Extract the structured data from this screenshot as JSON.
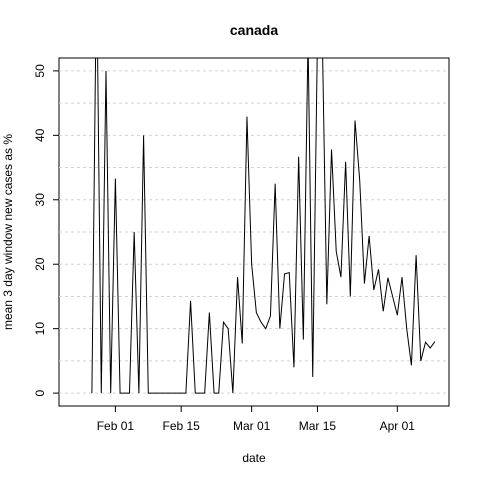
{
  "chart_data": {
    "type": "line",
    "title": "canada",
    "xlabel": "date",
    "ylabel": "mean  3  day window new cases as %",
    "x": [
      "Jan 27",
      "Jan 28",
      "Jan 29",
      "Jan 30",
      "Jan 31",
      "Feb 01",
      "Feb 02",
      "Feb 03",
      "Feb 04",
      "Feb 05",
      "Feb 06",
      "Feb 07",
      "Feb 08",
      "Feb 09",
      "Feb 10",
      "Feb 11",
      "Feb 12",
      "Feb 13",
      "Feb 14",
      "Feb 15",
      "Feb 16",
      "Feb 17",
      "Feb 18",
      "Feb 19",
      "Feb 20",
      "Feb 21",
      "Feb 22",
      "Feb 23",
      "Feb 24",
      "Feb 25",
      "Feb 26",
      "Feb 27",
      "Feb 28",
      "Feb 29",
      "Mar 01",
      "Mar 02",
      "Mar 03",
      "Mar 04",
      "Mar 05",
      "Mar 06",
      "Mar 07",
      "Mar 08",
      "Mar 09",
      "Mar 10",
      "Mar 11",
      "Mar 12",
      "Mar 13",
      "Mar 14",
      "Mar 15",
      "Mar 16",
      "Mar 17",
      "Mar 18",
      "Mar 19",
      "Mar 20",
      "Mar 21",
      "Mar 22",
      "Mar 23",
      "Mar 24",
      "Mar 25",
      "Mar 26",
      "Mar 27",
      "Mar 28",
      "Mar 29",
      "Mar 30",
      "Mar 31",
      "Apr 01",
      "Apr 02",
      "Apr 03",
      "Apr 04",
      "Apr 05",
      "Apr 06",
      "Apr 07",
      "Apr 08",
      "Apr 09"
    ],
    "series": [
      {
        "name": "canada",
        "color": "#000000",
        "values": [
          0,
          66.7,
          0,
          50,
          0,
          33.3,
          0,
          0,
          0,
          25,
          0,
          40,
          0,
          0,
          0,
          0,
          0,
          0,
          0,
          0,
          0,
          14.3,
          0,
          0,
          0,
          12.5,
          0,
          0,
          11,
          10,
          0,
          18,
          7.7,
          42.9,
          20,
          12.5,
          11,
          10,
          12,
          32.5,
          10,
          18.5,
          18.7,
          4,
          36.7,
          8.3,
          55,
          2.5,
          55,
          57,
          13.8,
          37.8,
          22,
          18,
          35.9,
          15,
          42.3,
          33,
          17,
          24.4,
          16,
          19.2,
          12.7,
          17.9,
          15,
          12.1,
          18,
          10,
          4.3,
          21.4,
          5,
          7.9,
          7,
          8
        ]
      }
    ],
    "xlim": [
      "Jan 20",
      "Apr 12"
    ],
    "xticks": [
      "Feb 01",
      "Feb 15",
      "Mar 01",
      "Mar 15",
      "Apr 01"
    ],
    "ylim": [
      -2,
      52
    ],
    "yticks": [
      0,
      10,
      20,
      30,
      40,
      50
    ],
    "ygrid": [
      0,
      5,
      10,
      15,
      20,
      25,
      30,
      35,
      40,
      45,
      50
    ],
    "grid": true
  }
}
